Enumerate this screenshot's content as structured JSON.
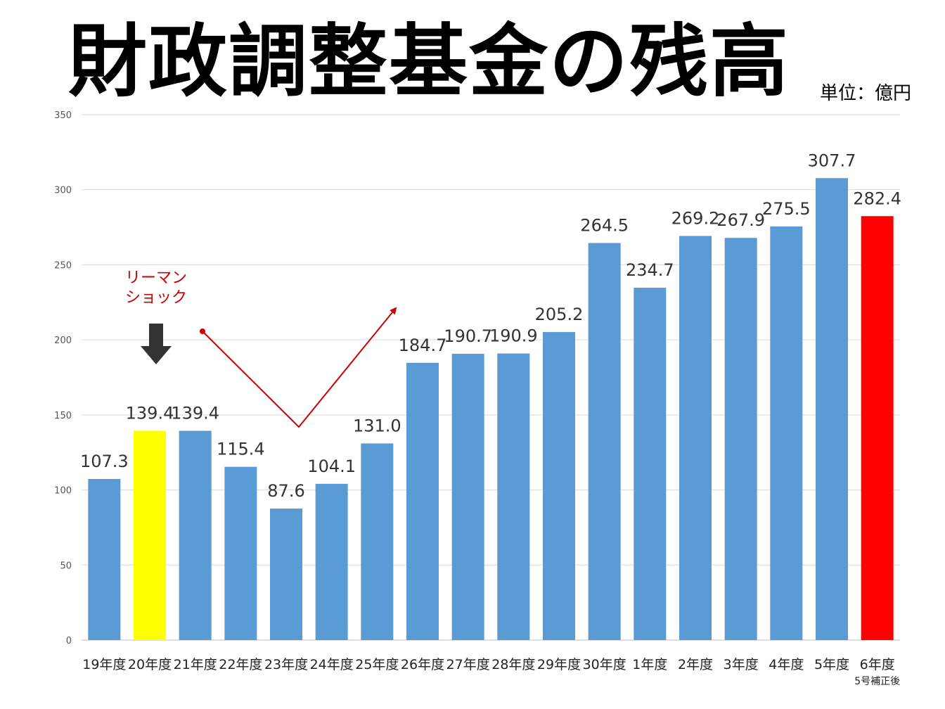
{
  "chart_data": {
    "type": "bar",
    "title": "財政調整基金の残高",
    "unit": "単位：億円",
    "ylim": [
      0,
      350
    ],
    "yticks": [
      0,
      50,
      100,
      150,
      200,
      250,
      300,
      350
    ],
    "grid": true,
    "categories": [
      "19年度",
      "20年度",
      "21年度",
      "22年度",
      "23年度",
      "24年度",
      "25年度",
      "26年度",
      "27年度",
      "28年度",
      "29年度",
      "30年度",
      "1年度",
      "2年度",
      "3年度",
      "4年度",
      "5年度",
      "6年度"
    ],
    "category_sublabels": [
      "",
      "",
      "",
      "",
      "",
      "",
      "",
      "",
      "",
      "",
      "",
      "",
      "",
      "",
      "",
      "",
      "",
      "5号補正後"
    ],
    "values": [
      107.3,
      139.4,
      139.4,
      115.4,
      87.6,
      104.1,
      131.0,
      184.7,
      190.7,
      190.9,
      205.2,
      264.5,
      234.7,
      269.2,
      267.9,
      275.5,
      307.7,
      282.4
    ],
    "data_labels": [
      "107.3",
      "139.4",
      "139.4",
      "115.4",
      "87.6",
      "104.1",
      "131.0",
      "184.7",
      "190.7",
      "190.9",
      "205.2",
      "264.5",
      "234.7",
      "269.2",
      "267.9",
      "275.5",
      "307.7",
      "282.4"
    ],
    "bar_colors": [
      "#5b9bd5",
      "#ffff00",
      "#5b9bd5",
      "#5b9bd5",
      "#5b9bd5",
      "#5b9bd5",
      "#5b9bd5",
      "#5b9bd5",
      "#5b9bd5",
      "#5b9bd5",
      "#5b9bd5",
      "#5b9bd5",
      "#5b9bd5",
      "#5b9bd5",
      "#5b9bd5",
      "#5b9bd5",
      "#5b9bd5",
      "#ff0000"
    ],
    "annotation": {
      "text_lines": [
        "リーマン",
        "ショック"
      ],
      "color": "#cc0000",
      "arrow_icon": "down-arrow-icon",
      "arrow_color": "#333333",
      "trend_icon": "v-trend-arrow-icon"
    }
  }
}
